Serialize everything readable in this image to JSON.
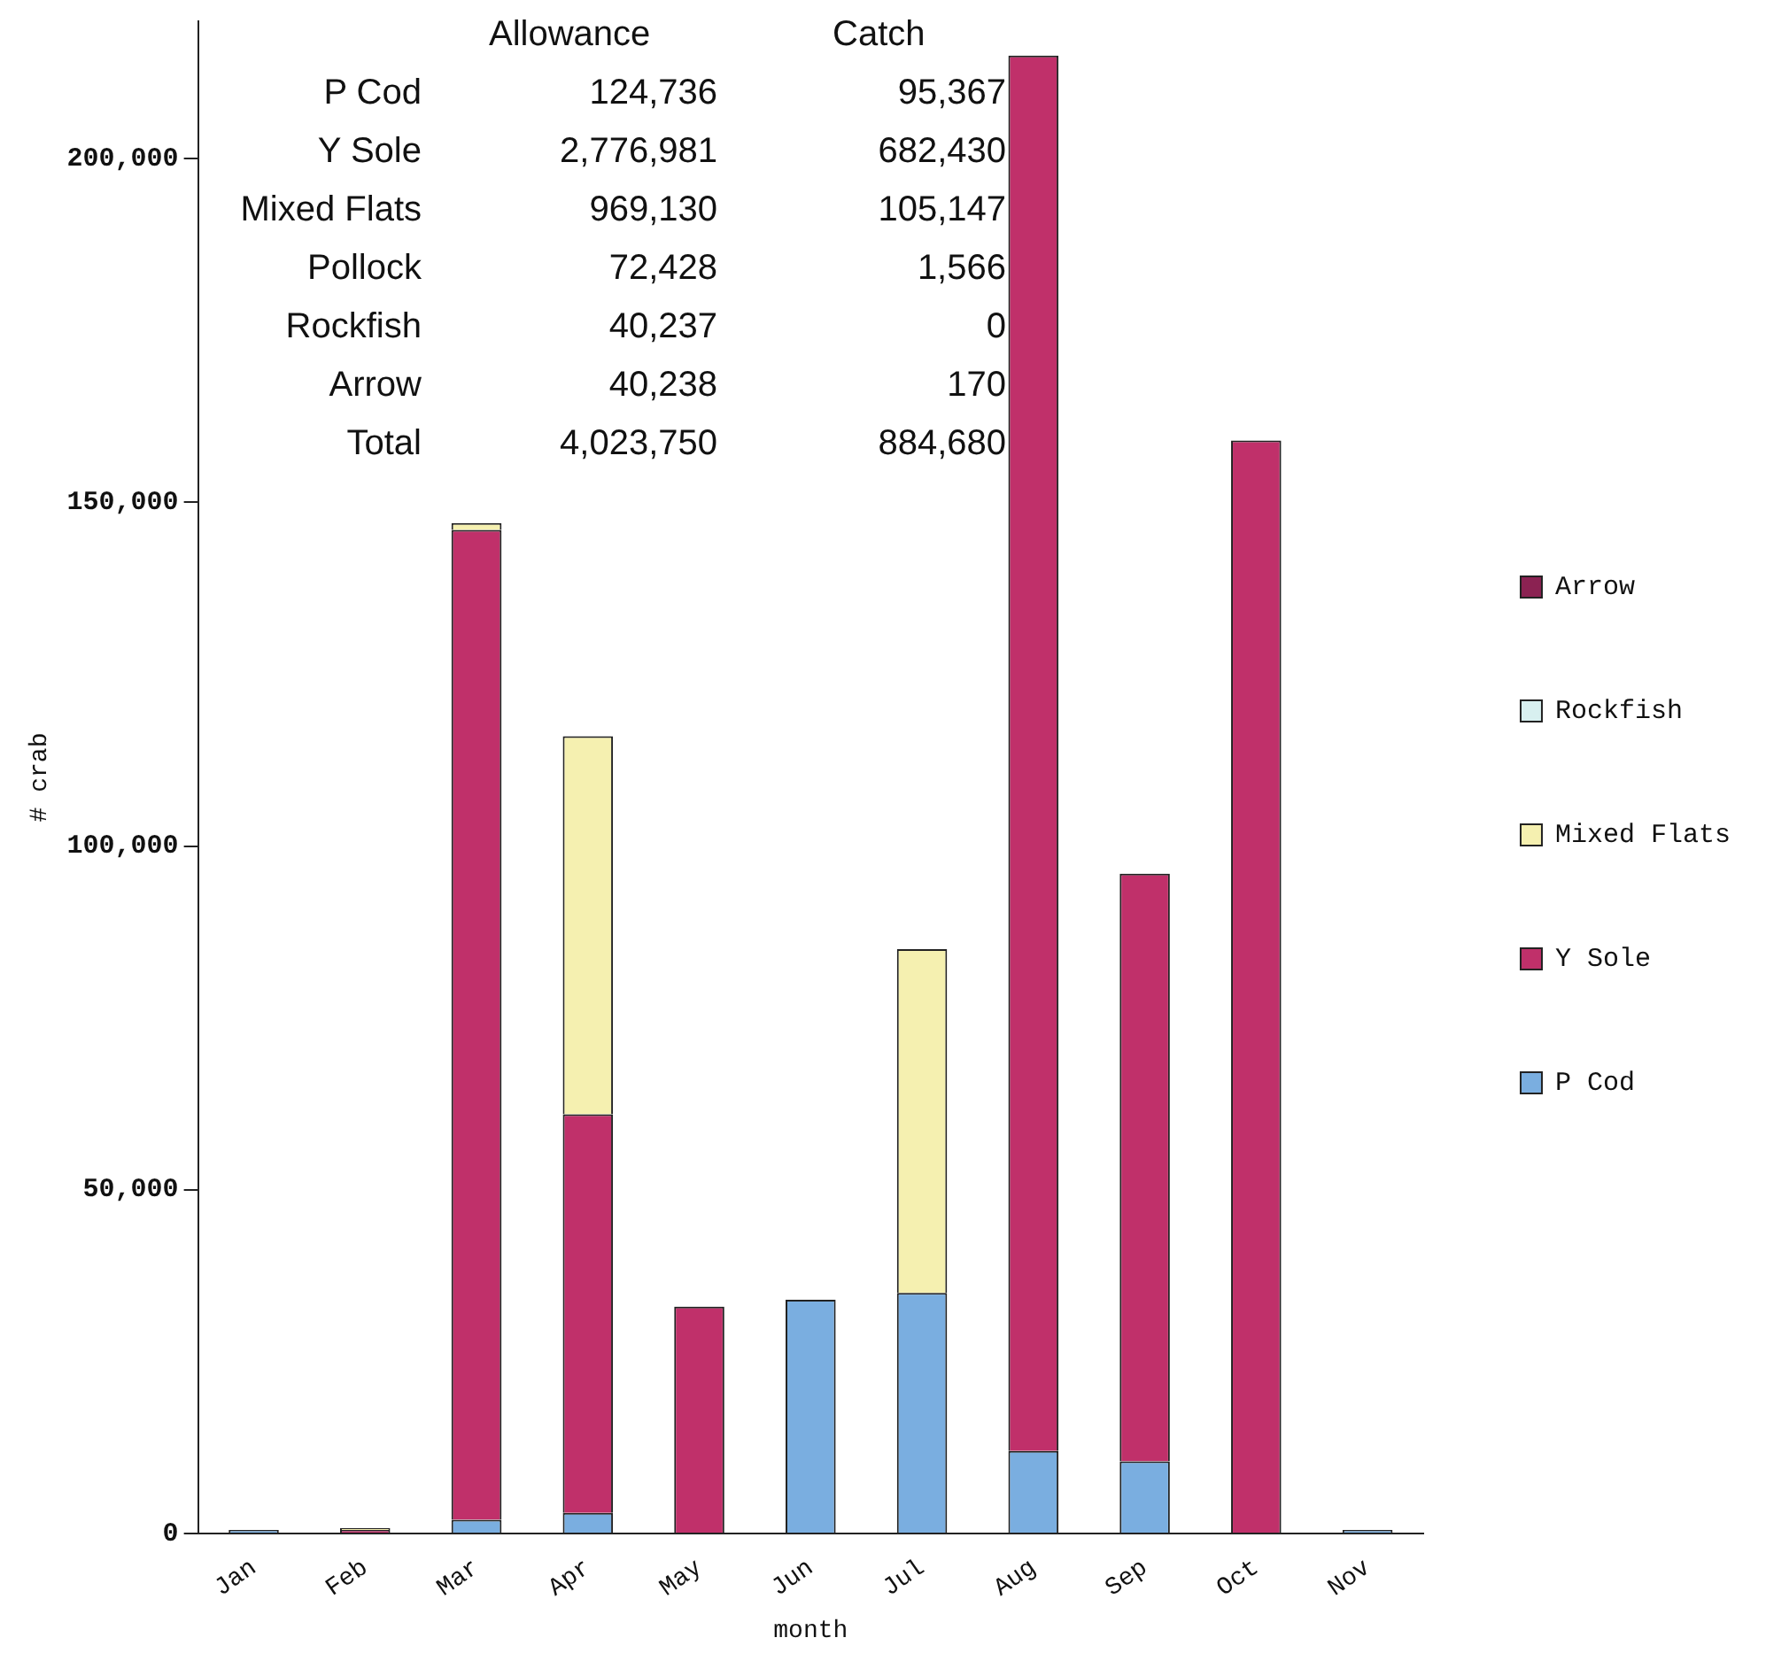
{
  "chart_data": {
    "type": "bar",
    "stacked": true,
    "xlabel": "month",
    "ylabel": "# crab",
    "categories": [
      "Jan",
      "Feb",
      "Mar",
      "Apr",
      "May",
      "Jun",
      "Jul",
      "Aug",
      "Sep",
      "Oct",
      "Nov"
    ],
    "series": [
      {
        "name": "P Cod",
        "color": "#7aaee0",
        "values": [
          500,
          0,
          2000,
          3000,
          0,
          34000,
          35000,
          12000,
          10500,
          0,
          500
        ]
      },
      {
        "name": "Y Sole",
        "color": "#c0306a",
        "values": [
          0,
          500,
          144000,
          58000,
          33000,
          0,
          0,
          203000,
          85500,
          159000,
          0
        ]
      },
      {
        "name": "Mixed Flats",
        "color": "#f5f0b0",
        "values": [
          0,
          300,
          1000,
          55000,
          0,
          0,
          50000,
          0,
          0,
          0,
          0
        ]
      },
      {
        "name": "Rockfish",
        "color": "#d8f0f0",
        "values": [
          0,
          0,
          0,
          0,
          0,
          0,
          0,
          0,
          0,
          0,
          0
        ]
      },
      {
        "name": "Arrow",
        "color": "#8b2252",
        "values": [
          0,
          0,
          0,
          0,
          0,
          0,
          0,
          0,
          0,
          0,
          0
        ]
      }
    ],
    "ylim": [
      0,
      220000
    ],
    "yticks": [
      0,
      {
        "value": 50000,
        "label": "50,000"
      },
      {
        "value": 100000,
        "label": "100,000"
      },
      {
        "value": 150000,
        "label": "150,000"
      },
      {
        "value": 200000,
        "label": "200,000"
      }
    ],
    "grid": false,
    "legend": "right",
    "annotations": [
      "Allowance",
      "Catch",
      "P Cod",
      "124,736",
      "95,367",
      "Y Sole",
      "2,776,981",
      "682,430",
      "Mixed Flats",
      "969,130",
      "105,147",
      "Pollock",
      "72,428",
      "1,566",
      "Rockfish",
      "40,237",
      "0",
      "Arrow",
      "40,238",
      "170",
      "Total",
      "4,023,750",
      "884,680"
    ]
  }
}
